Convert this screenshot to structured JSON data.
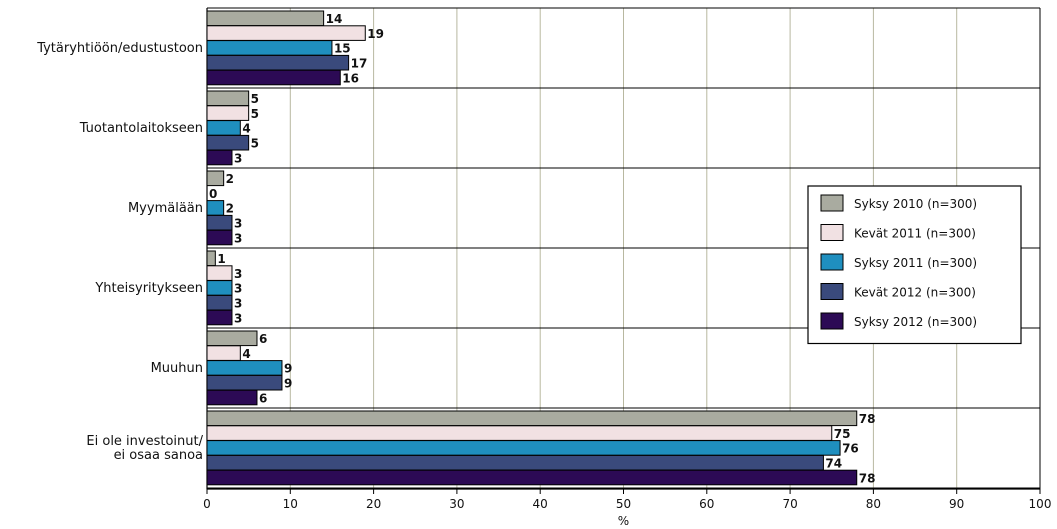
{
  "chart_data": {
    "type": "bar",
    "orientation": "horizontal",
    "title": "",
    "xlabel": "%",
    "ylabel": "",
    "xlim": [
      0,
      100
    ],
    "x_ticks": [
      "0",
      "10",
      "20",
      "30",
      "40",
      "50",
      "60",
      "70",
      "80",
      "90",
      "100"
    ],
    "grid": true,
    "legend_position": "right",
    "categories": [
      "Tytäryhtiöön/edustustoon",
      "Tuotantolaitokseen",
      "Myymälään",
      "Yhteisyritykseen",
      "Muuhun",
      "Ei ole investoinut/\nei osaa sanoa"
    ],
    "series": [
      {
        "name": "Syksy 2010 (n=300)",
        "color": "#a9aba0",
        "values": [
          14,
          5,
          2,
          1,
          6,
          78
        ]
      },
      {
        "name": "Kevät 2011 (n=300)",
        "color": "#f1e1e3",
        "values": [
          19,
          5,
          0,
          3,
          4,
          75
        ]
      },
      {
        "name": "Syksy 2011 (n=300)",
        "color": "#1f8fbf",
        "values": [
          15,
          4,
          2,
          3,
          9,
          76
        ]
      },
      {
        "name": "Kevät 2012 (n=300)",
        "color": "#3a4a7c",
        "values": [
          17,
          5,
          3,
          3,
          9,
          74
        ]
      },
      {
        "name": "Syksy 2012 (n=300)",
        "color": "#2c0a55",
        "values": [
          16,
          3,
          3,
          3,
          6,
          78
        ]
      }
    ]
  }
}
